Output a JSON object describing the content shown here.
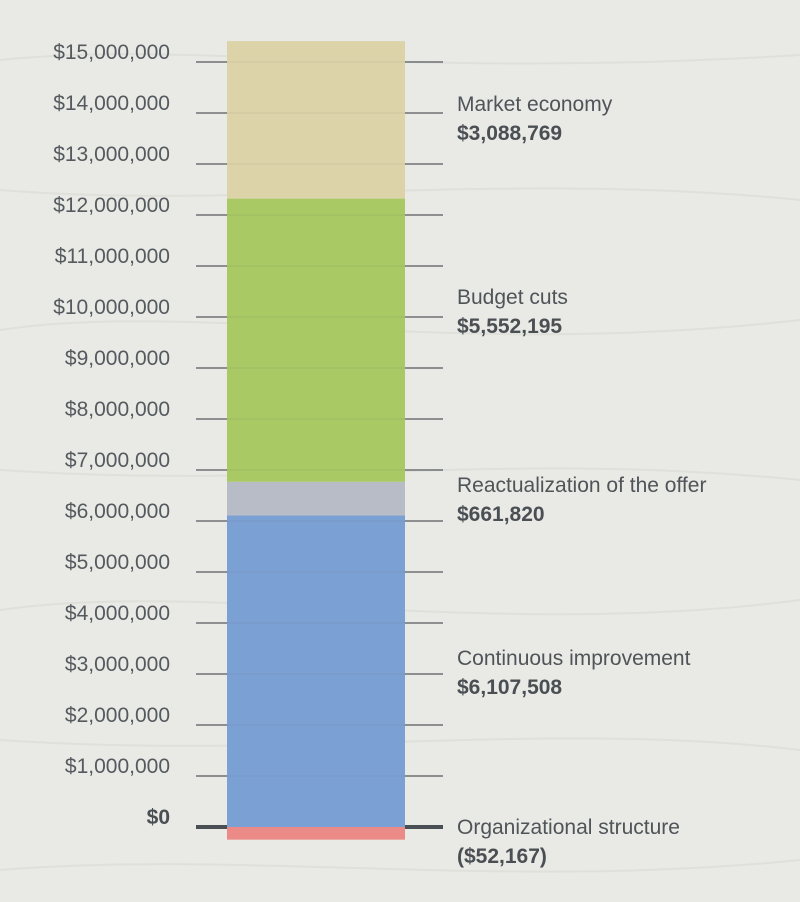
{
  "chart_data": {
    "type": "stacked-bar",
    "title": "",
    "xlabel": "",
    "ylabel": "",
    "ylim": [
      -300000,
      15500000
    ],
    "y_ticks": [
      0,
      1000000,
      2000000,
      3000000,
      4000000,
      5000000,
      6000000,
      7000000,
      8000000,
      9000000,
      10000000,
      11000000,
      12000000,
      13000000,
      14000000,
      15000000
    ],
    "y_tick_labels": [
      "$0",
      "$1,000,000",
      "$2,000,000",
      "$3,000,000",
      "$4,000,000",
      "$5,000,000",
      "$6,000,000",
      "$7,000,000",
      "$8,000,000",
      "$9,000,000",
      "$10,000,000",
      "$11,000,000",
      "$12,000,000",
      "$13,000,000",
      "$14,000,000",
      "$15,000,000"
    ],
    "segments": [
      {
        "name": "Organizational structure",
        "value": -52167,
        "value_label": "($52,167)",
        "color": "#ec8a88"
      },
      {
        "name": "Continuous improvement",
        "value": 6107508,
        "value_label": "$6,107,508",
        "color": "#7ba0d4"
      },
      {
        "name": "Reactualization of the offer",
        "value": 661820,
        "value_label": "$661,820",
        "color": "#b8bcc7"
      },
      {
        "name": "Budget cuts",
        "value": 5552195,
        "value_label": "$5,552,195",
        "color": "#a8c963"
      },
      {
        "name": "Market economy",
        "value": 3088769,
        "value_label": "$3,088,769",
        "color": "#dcd4a8"
      }
    ],
    "grid": true,
    "legend": "none"
  }
}
